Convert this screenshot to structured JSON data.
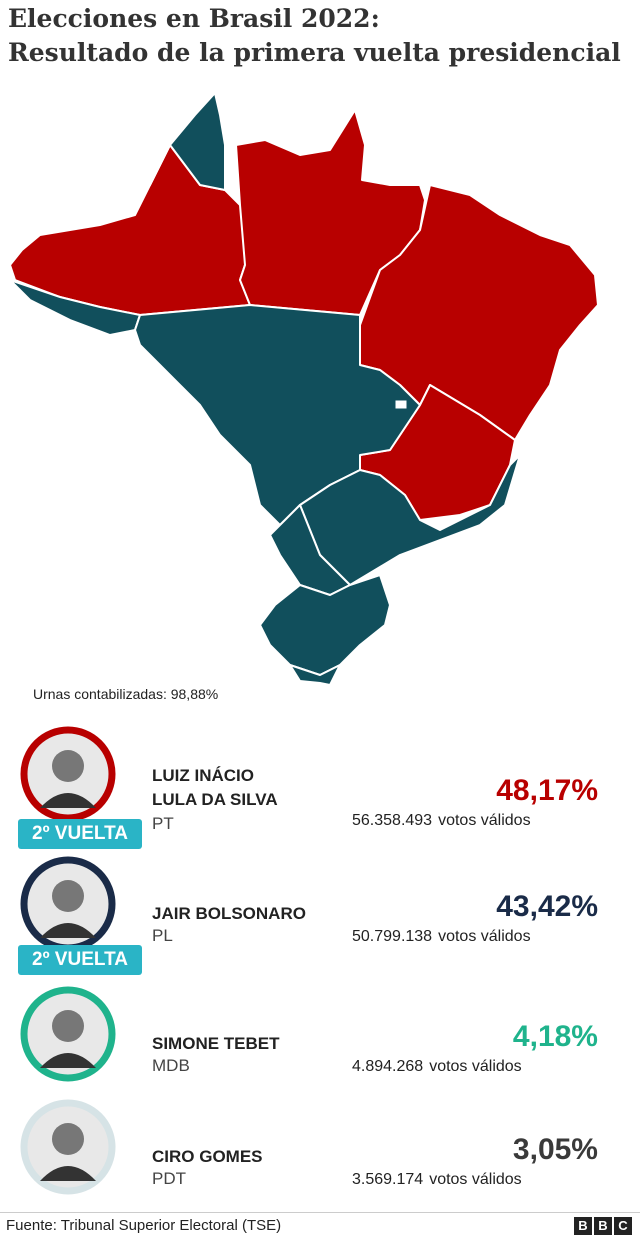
{
  "header": {
    "title_line1": "Elecciones en Brasil 2022:",
    "title_line2": "Resultado de la primera vuelta presidencial"
  },
  "map": {
    "note": "Urnas contabilizadas: 98,88%"
  },
  "candidates": [
    {
      "name_line1": "LUIZ INÁCIO",
      "name_line2": "LULA DA SILVA",
      "party": "PT",
      "percent": "48,17%",
      "votes": "56.358.493",
      "votes_label": "votos válidos",
      "badge": "2º VUELTA",
      "color": "#b80000"
    },
    {
      "name_line1": "JAIR BOLSONARO",
      "party": "PL",
      "percent": "43,42%",
      "votes": "50.799.138",
      "votes_label": "votos válidos",
      "badge": "2º VUELTA",
      "color": "#1a2b48"
    },
    {
      "name_line1": "SIMONE TEBET",
      "party": "MDB",
      "percent": "4,18%",
      "votes": "4.894.268",
      "votes_label": "votos válidos",
      "color": "#1fb38c"
    },
    {
      "name_line1": "CIRO GOMES",
      "party": "PDT",
      "percent": "3,05%",
      "votes": "3.569.174",
      "votes_label": "votos válidos",
      "color": "#3a3a3a"
    }
  ],
  "footer": {
    "source": "Fuente: Tribunal Superior Electoral (TSE)"
  }
}
